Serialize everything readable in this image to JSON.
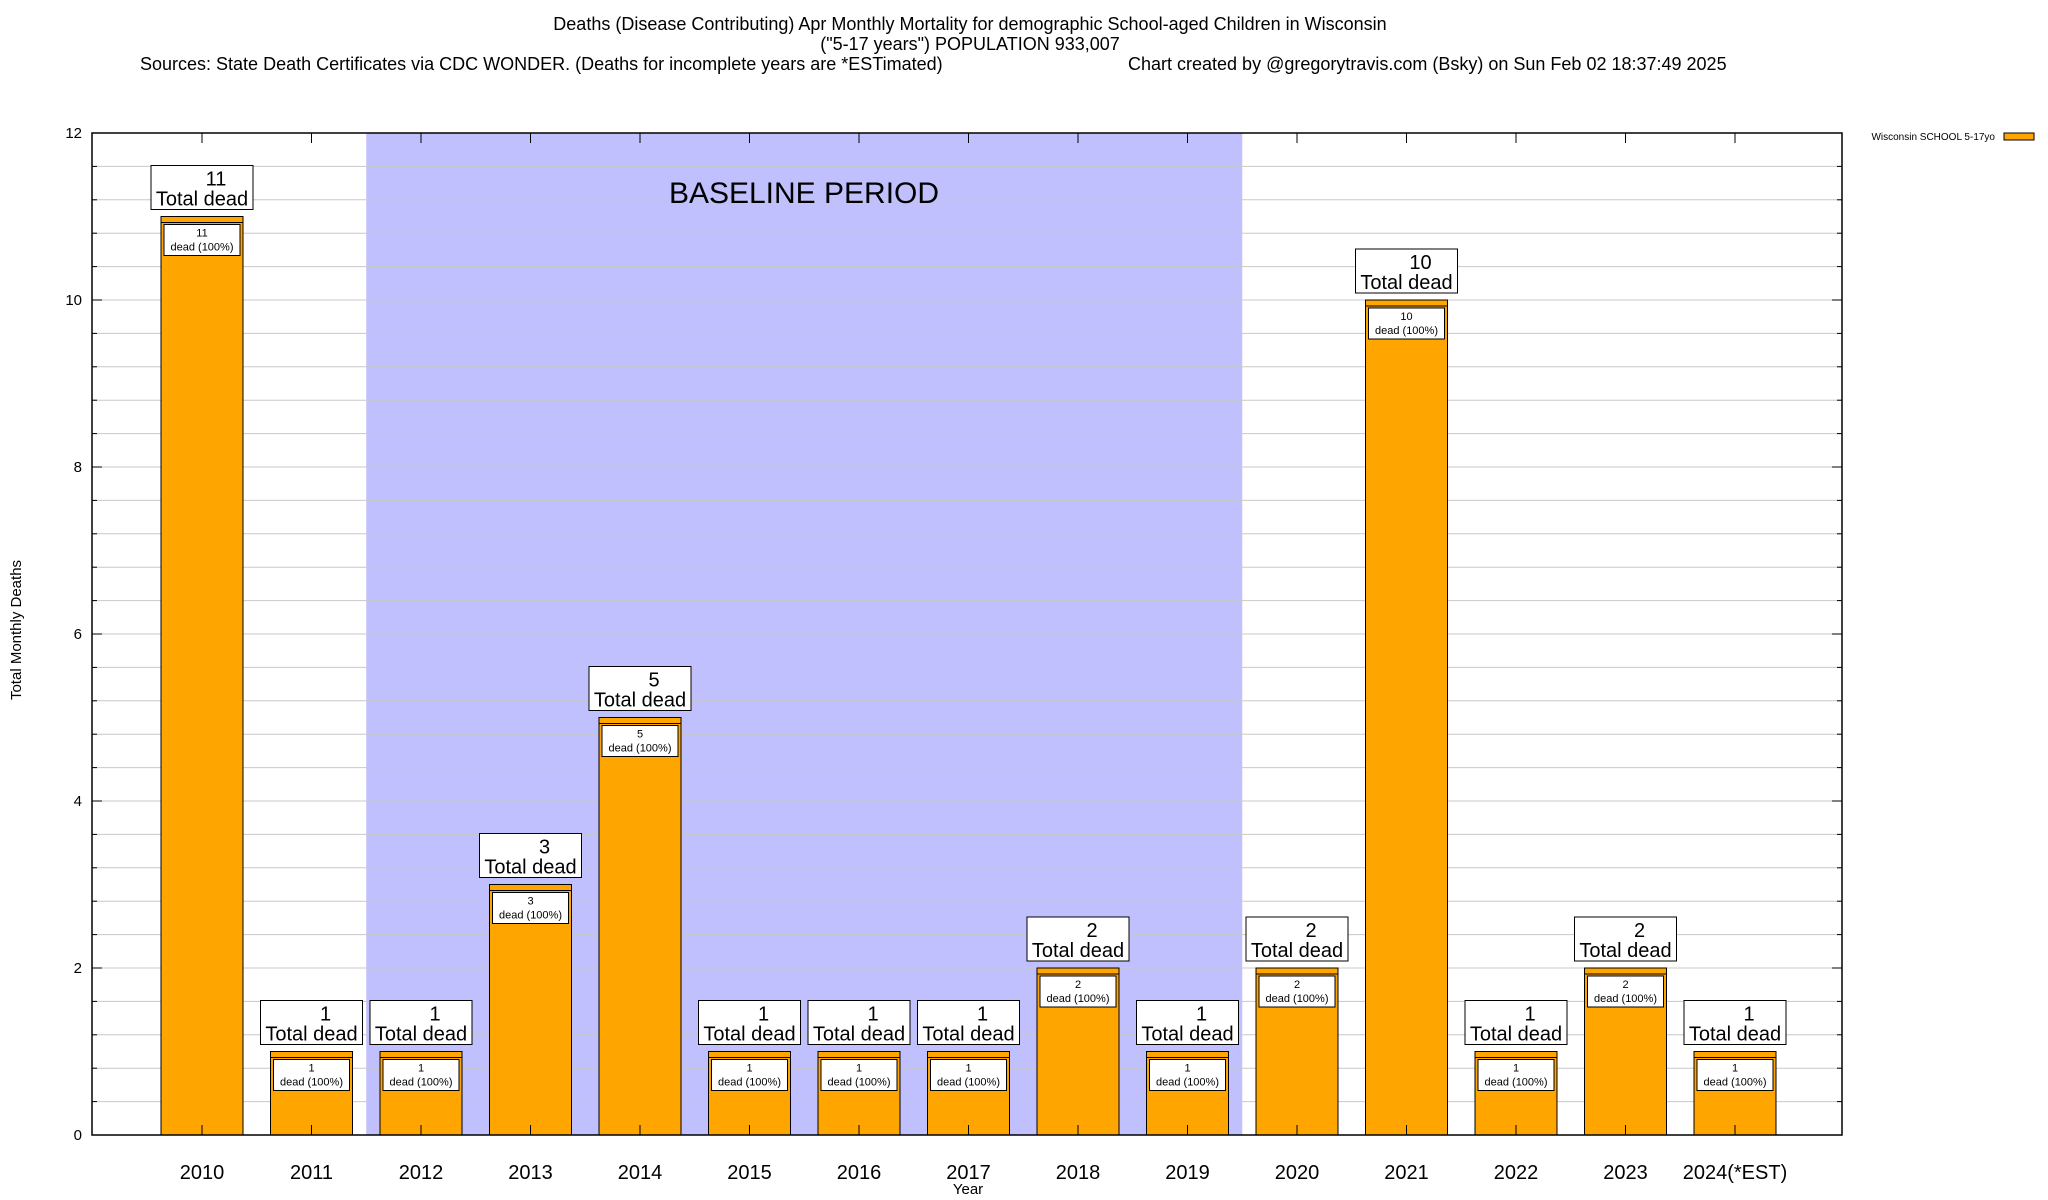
{
  "header": {
    "title_line1": "Deaths (Disease Contributing) Apr Monthly Mortality for demographic School-aged Children in Wisconsin",
    "title_line2": "(\"5-17 years\") POPULATION 933,007",
    "sources": "Sources: State Death Certificates via CDC WONDER. (Deaths for incomplete years are *ESTimated)",
    "credit": "Chart created by @gregorytravis.com (Bsky) on Sun Feb 02 18:37:49 2025"
  },
  "chart_data": {
    "type": "bar",
    "categories": [
      "2010",
      "2011",
      "2012",
      "2013",
      "2014",
      "2015",
      "2016",
      "2017",
      "2018",
      "2019",
      "2020",
      "2021",
      "2022",
      "2023",
      "2024(*EST)"
    ],
    "series": [
      {
        "name": "Wisconsin SCHOOL 5-17yo",
        "values": [
          11,
          1,
          1,
          3,
          5,
          1,
          1,
          1,
          2,
          1,
          2,
          10,
          1,
          2,
          1
        ]
      }
    ],
    "total_label_suffix": "Total dead",
    "inner_label_suffix": "dead (100%)",
    "xlabel": "Year",
    "ylabel": "Total Monthly Deaths",
    "ylim": [
      0,
      12
    ],
    "yticks": [
      0,
      2,
      4,
      6,
      8,
      10,
      12
    ],
    "baseline": {
      "label": "BASELINE PERIOD",
      "from": "2012",
      "to": "2019"
    },
    "legend": {
      "label": "Wisconsin SCHOOL 5-17yo",
      "placement": "top-right outside"
    },
    "colors": {
      "bar": "#ffa500",
      "baseline": "#c0c0ff",
      "grid": "#c8c8c8"
    },
    "grid": true
  }
}
